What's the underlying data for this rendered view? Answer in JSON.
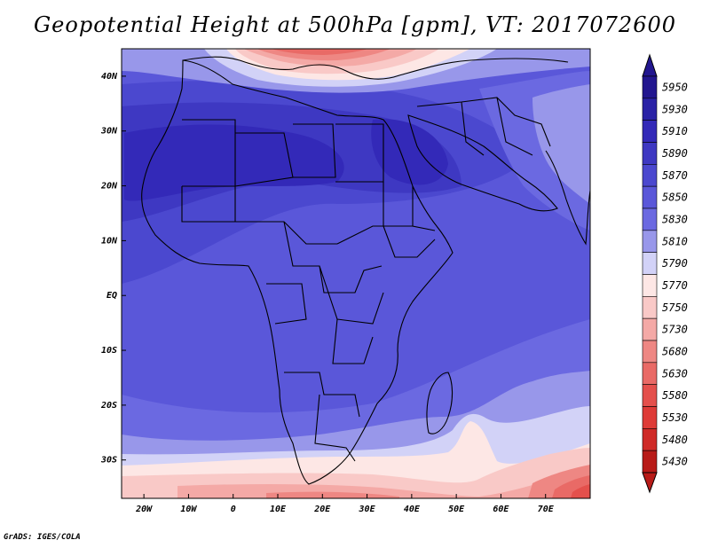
{
  "title": "Geopotential Height at 500hPa [gpm], VT: 2017072600",
  "footer": "GrADS: IGES/COLA",
  "map": {
    "lon_range": [
      -25,
      80
    ],
    "lat_range": [
      -37,
      45
    ],
    "lon_ticks": [
      {
        "value": -20,
        "label": "20W"
      },
      {
        "value": -10,
        "label": "10W"
      },
      {
        "value": 0,
        "label": "0"
      },
      {
        "value": 10,
        "label": "10E"
      },
      {
        "value": 20,
        "label": "20E"
      },
      {
        "value": 30,
        "label": "30E"
      },
      {
        "value": 40,
        "label": "40E"
      },
      {
        "value": 50,
        "label": "50E"
      },
      {
        "value": 60,
        "label": "60E"
      },
      {
        "value": 70,
        "label": "70E"
      }
    ],
    "lat_ticks": [
      {
        "value": 40,
        "label": "40N"
      },
      {
        "value": 30,
        "label": "30N"
      },
      {
        "value": 20,
        "label": "20N"
      },
      {
        "value": 10,
        "label": "10N"
      },
      {
        "value": 0,
        "label": "EQ"
      },
      {
        "value": -10,
        "label": "10S"
      },
      {
        "value": -20,
        "label": "20S"
      },
      {
        "value": -30,
        "label": "30S"
      }
    ]
  },
  "colorbar": {
    "levels": [
      {
        "label": "5950",
        "color": "#22168f"
      },
      {
        "label": "5930",
        "color": "#2a22a6"
      },
      {
        "label": "5910",
        "color": "#3329b8"
      },
      {
        "label": "5890",
        "color": "#3e38c2"
      },
      {
        "label": "5870",
        "color": "#4b48cf"
      },
      {
        "label": "5850",
        "color": "#5a57d9"
      },
      {
        "label": "5830",
        "color": "#6b69e1"
      },
      {
        "label": "5810",
        "color": "#9897ea"
      },
      {
        "label": "5790",
        "color": "#d2d2f7"
      },
      {
        "label": "5770",
        "color": "#fde7e5"
      },
      {
        "label": "5750",
        "color": "#f9c9c7"
      },
      {
        "label": "5730",
        "color": "#f4a9a6"
      },
      {
        "label": "5680",
        "color": "#ee8783"
      },
      {
        "label": "5630",
        "color": "#e96a66"
      },
      {
        "label": "5580",
        "color": "#e4504c"
      },
      {
        "label": "5530",
        "color": "#de3b37"
      },
      {
        "label": "5480",
        "color": "#cf2a27"
      },
      {
        "label": "5430",
        "color": "#b81b18"
      }
    ]
  }
}
